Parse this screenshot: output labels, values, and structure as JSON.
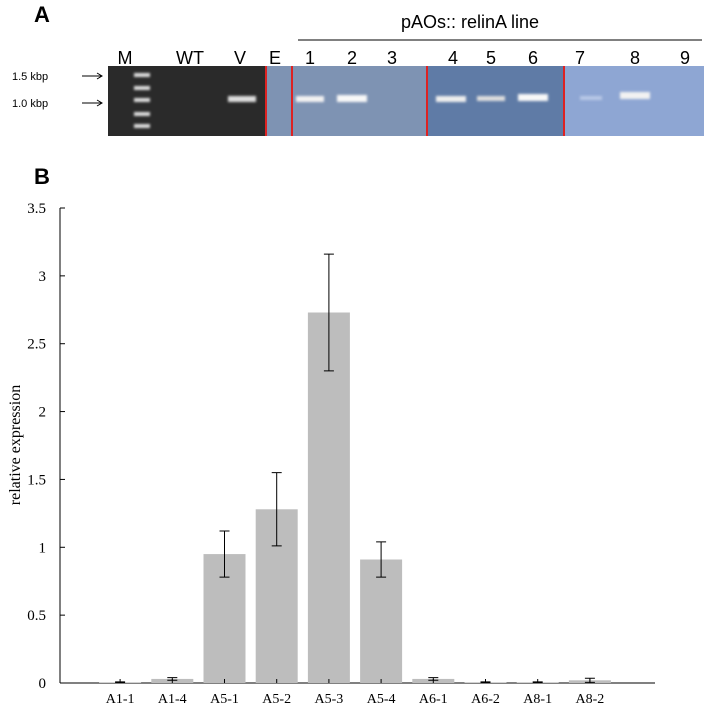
{
  "panels": [
    "A",
    "B"
  ],
  "gel": {
    "construct_label": "pAOs:: relinA line",
    "lanes": [
      "M",
      "WT",
      "V",
      "E",
      "1",
      "2",
      "3",
      "4",
      "5",
      "6",
      "7",
      "8",
      "9"
    ],
    "size_markers": [
      "1.5 kbp",
      "1.0 kbp"
    ]
  },
  "chart_data": {
    "type": "bar",
    "y_label": "relative expression",
    "categories": [
      "A1-1",
      "A1-4",
      "A5-1",
      "A5-2",
      "A5-3",
      "A5-4",
      "A6-1",
      "A6-2",
      "A8-1",
      "A8-2"
    ],
    "values": [
      0.005,
      0.03,
      0.95,
      1.28,
      2.73,
      0.91,
      0.03,
      0.005,
      0.005,
      0.02
    ],
    "errors": [
      0.003,
      0.01,
      0.17,
      0.27,
      0.43,
      0.13,
      0.01,
      0.003,
      0.003,
      0.015
    ],
    "color": "#bdbdbd",
    "ylim": [
      0,
      3.5
    ],
    "yticks": [
      0,
      0.5,
      1,
      1.5,
      2,
      2.5,
      3,
      3.5
    ]
  }
}
